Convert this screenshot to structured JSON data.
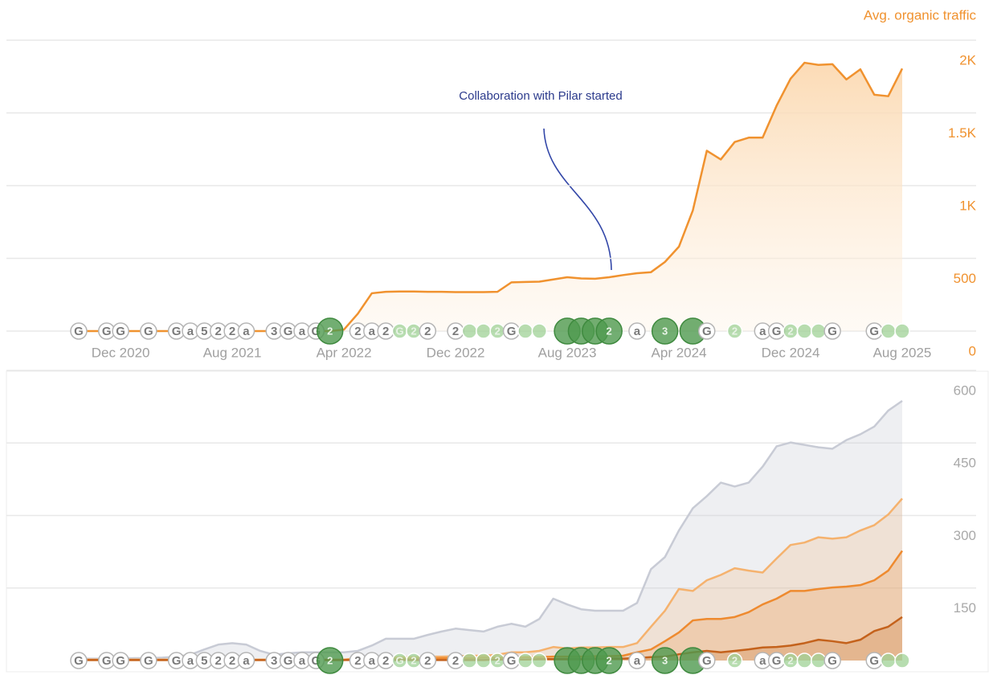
{
  "chart_data": [
    {
      "type": "area",
      "y_label": "Avg. organic traffic",
      "annotation": "Collaboration with Pilar started",
      "color": "#f0922f",
      "categories": [
        null,
        null,
        null,
        "Dec 2020",
        null,
        null,
        null,
        null,
        null,
        null,
        null,
        "Aug 2021",
        null,
        null,
        null,
        null,
        null,
        null,
        null,
        "Apr 2022",
        null,
        null,
        null,
        null,
        null,
        null,
        null,
        "Dec 2022",
        null,
        null,
        null,
        null,
        null,
        null,
        null,
        "Aug 2023",
        null,
        null,
        null,
        null,
        null,
        null,
        null,
        "Apr 2024",
        null,
        null,
        null,
        null,
        null,
        null,
        null,
        "Dec 2024",
        null,
        null,
        null,
        null,
        null,
        null,
        null,
        "Aug 2025"
      ],
      "values": [
        0,
        0,
        0,
        0,
        0,
        0,
        0,
        0,
        0,
        0,
        0,
        0,
        0,
        0,
        0,
        0,
        0,
        0,
        0,
        10,
        120,
        260,
        270,
        272,
        272,
        270,
        270,
        268,
        268,
        268,
        270,
        335,
        338,
        340,
        355,
        370,
        362,
        360,
        370,
        385,
        398,
        405,
        475,
        580,
        830,
        1240,
        1180,
        1300,
        1330,
        1330,
        1550,
        1735,
        1845,
        1830,
        1835,
        1730,
        1800,
        1625,
        1615,
        1805
      ],
      "ylim": [
        0,
        2000
      ],
      "yticks": [
        0,
        500,
        {
          "value": 1000,
          "label": "1K"
        },
        {
          "value": 1500,
          "label": "1.5K"
        },
        {
          "value": 2000,
          "label": "2K"
        }
      ],
      "grid": true,
      "markers": [
        {
          "x": 0,
          "label": "G"
        },
        {
          "x": 2,
          "label": "G"
        },
        {
          "x": 3,
          "label": "G"
        },
        {
          "x": 5,
          "label": "G"
        },
        {
          "x": 7,
          "label": "G"
        },
        {
          "x": 8,
          "label": "a"
        },
        {
          "x": 9,
          "label": "5"
        },
        {
          "x": 10,
          "label": "2"
        },
        {
          "x": 11,
          "label": "2"
        },
        {
          "x": 12,
          "label": "a"
        },
        {
          "x": 14,
          "label": "3"
        },
        {
          "x": 15,
          "label": "G"
        },
        {
          "x": 16,
          "label": "a"
        },
        {
          "x": 17,
          "label": "G"
        },
        {
          "x": 18,
          "label": "2",
          "kind": "big"
        },
        {
          "x": 20,
          "label": "2"
        },
        {
          "x": 21,
          "label": "a"
        },
        {
          "x": 22,
          "label": "2"
        },
        {
          "x": 23,
          "label": "G",
          "kind": "dot"
        },
        {
          "x": 24,
          "label": "2",
          "kind": "dot"
        },
        {
          "x": 25,
          "label": "2"
        },
        {
          "x": 27,
          "label": "2"
        },
        {
          "x": 28,
          "kind": "dot"
        },
        {
          "x": 29,
          "kind": "dot"
        },
        {
          "x": 30,
          "label": "2",
          "kind": "dot"
        },
        {
          "x": 31,
          "label": "G"
        },
        {
          "x": 32,
          "kind": "dot"
        },
        {
          "x": 33,
          "kind": "dot"
        },
        {
          "x": 35,
          "kind": "big"
        },
        {
          "x": 36,
          "kind": "big"
        },
        {
          "x": 37,
          "kind": "big"
        },
        {
          "x": 38,
          "label": "2",
          "kind": "big"
        },
        {
          "x": 40,
          "label": "a"
        },
        {
          "x": 42,
          "label": "3",
          "kind": "big"
        },
        {
          "x": 44,
          "kind": "big"
        },
        {
          "x": 45,
          "label": "G"
        },
        {
          "x": 47,
          "label": "2",
          "kind": "dot"
        },
        {
          "x": 49,
          "label": "a"
        },
        {
          "x": 50,
          "label": "G"
        },
        {
          "x": 51,
          "label": "2",
          "kind": "dot"
        },
        {
          "x": 52,
          "kind": "dot"
        },
        {
          "x": 53,
          "kind": "dot"
        },
        {
          "x": 54,
          "label": "G"
        },
        {
          "x": 57,
          "label": "G"
        },
        {
          "x": 58,
          "kind": "dot"
        },
        {
          "x": 59,
          "kind": "dot"
        }
      ]
    },
    {
      "type": "multi_area",
      "categories": [
        null,
        null,
        null,
        null,
        null,
        null,
        null,
        null,
        null,
        null,
        null,
        null,
        null,
        null,
        null,
        null,
        null,
        null,
        null,
        null,
        null,
        null,
        null,
        null,
        null,
        null,
        null,
        null,
        null,
        null,
        null,
        null,
        null,
        null,
        null,
        null,
        null,
        null,
        null,
        null,
        null,
        null,
        null,
        null,
        null,
        null,
        null,
        null,
        null,
        null,
        null,
        null,
        null,
        null,
        null,
        null,
        null,
        null,
        null,
        null
      ],
      "series": [
        {
          "color": "#c8cbd5",
          "values": [
            4,
            4,
            4,
            4,
            5,
            5,
            6,
            8,
            12,
            23,
            33,
            36,
            33,
            20,
            12,
            15,
            17,
            17,
            17,
            17,
            20,
            31,
            45,
            45,
            45,
            53,
            60,
            66,
            63,
            60,
            70,
            76,
            70,
            86,
            128,
            116,
            106,
            103,
            103,
            103,
            119,
            189,
            214,
            269,
            315,
            340,
            368,
            360,
            368,
            401,
            443,
            451,
            446,
            441,
            438,
            456,
            468,
            484,
            517,
            537
          ]
        },
        {
          "color": "#f5b26e",
          "values": [
            2,
            2,
            2,
            2,
            2,
            2,
            2,
            2,
            2,
            2,
            2,
            2,
            2,
            2,
            2,
            2,
            2,
            2,
            2,
            2,
            5,
            6,
            6,
            7,
            7,
            8,
            8,
            9,
            10,
            10,
            12,
            17,
            17,
            20,
            28,
            25,
            27,
            27,
            28,
            28,
            36,
            70,
            103,
            148,
            144,
            166,
            177,
            191,
            186,
            182,
            211,
            239,
            244,
            255,
            252,
            255,
            269,
            280,
            302,
            335
          ]
        },
        {
          "color": "#ee8a2f",
          "values": [
            1,
            1,
            1,
            1,
            1,
            1,
            1,
            1,
            1,
            1,
            1,
            1,
            1,
            1,
            1,
            1,
            1,
            1,
            1,
            1,
            3,
            3,
            3,
            4,
            4,
            4,
            5,
            5,
            5,
            6,
            6,
            6,
            7,
            7,
            8,
            8,
            8,
            9,
            9,
            10,
            17,
            23,
            40,
            58,
            83,
            86,
            86,
            90,
            100,
            116,
            128,
            144,
            144,
            148,
            151,
            153,
            156,
            166,
            186,
            227
          ]
        },
        {
          "color": "#c4621c",
          "values": [
            1,
            1,
            1,
            1,
            1,
            1,
            1,
            1,
            1,
            1,
            1,
            1,
            1,
            1,
            1,
            1,
            1,
            1,
            1,
            1,
            1,
            1,
            1,
            1,
            1,
            1,
            1,
            1,
            1,
            1,
            2,
            2,
            2,
            3,
            3,
            3,
            3,
            4,
            4,
            4,
            5,
            7,
            8,
            13,
            17,
            20,
            17,
            20,
            23,
            27,
            28,
            31,
            36,
            43,
            40,
            36,
            43,
            61,
            70,
            90
          ]
        }
      ],
      "ylim": [
        0,
        600
      ],
      "yticks": [
        150,
        300,
        450,
        600
      ],
      "grid": true
    }
  ]
}
